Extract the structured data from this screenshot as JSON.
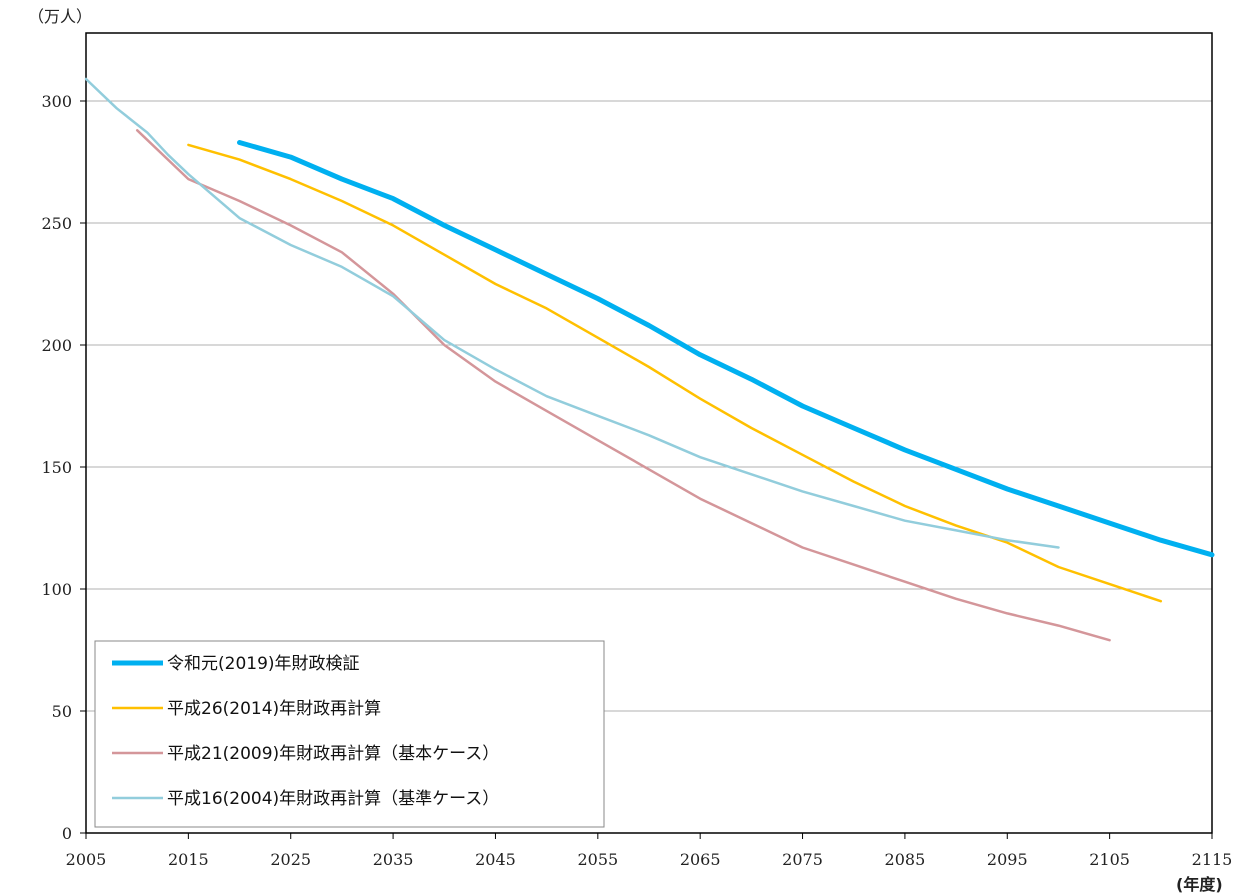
{
  "chart_data": {
    "type": "line",
    "ylabel": "（万人）",
    "xlabel": "(年度)",
    "xlim": [
      2005,
      2115
    ],
    "ylim": [
      0,
      300
    ],
    "yticks": [
      0,
      50,
      100,
      150,
      200,
      250,
      300
    ],
    "xticks": [
      2005,
      2015,
      2025,
      2035,
      2045,
      2055,
      2065,
      2075,
      2085,
      2095,
      2105,
      2115
    ],
    "grid": true,
    "legend_position": "bottom-left",
    "series": [
      {
        "name": "令和元(2019)年財政検証",
        "color": "#00b0f0",
        "width": "thick",
        "points": [
          [
            2020,
            283
          ],
          [
            2025,
            277
          ],
          [
            2030,
            268
          ],
          [
            2035,
            260
          ],
          [
            2040,
            249
          ],
          [
            2045,
            239
          ],
          [
            2050,
            229
          ],
          [
            2055,
            219
          ],
          [
            2060,
            208
          ],
          [
            2065,
            196
          ],
          [
            2070,
            186
          ],
          [
            2075,
            175
          ],
          [
            2080,
            166
          ],
          [
            2085,
            157
          ],
          [
            2090,
            149
          ],
          [
            2095,
            141
          ],
          [
            2100,
            134
          ],
          [
            2105,
            127
          ],
          [
            2110,
            120
          ],
          [
            2115,
            114
          ]
        ]
      },
      {
        "name": "平成26(2014)年財政再計算",
        "color": "#ffc000",
        "width": "normal",
        "points": [
          [
            2015,
            282
          ],
          [
            2020,
            276
          ],
          [
            2025,
            268
          ],
          [
            2030,
            259
          ],
          [
            2035,
            249
          ],
          [
            2040,
            237
          ],
          [
            2045,
            225
          ],
          [
            2050,
            215
          ],
          [
            2055,
            203
          ],
          [
            2060,
            191
          ],
          [
            2065,
            178
          ],
          [
            2070,
            166
          ],
          [
            2075,
            155
          ],
          [
            2080,
            144
          ],
          [
            2085,
            134
          ],
          [
            2090,
            126
          ],
          [
            2095,
            119
          ],
          [
            2100,
            109
          ],
          [
            2105,
            102
          ],
          [
            2110,
            95
          ]
        ]
      },
      {
        "name": "平成21(2009)年財政再計算（基本ケース）",
        "color": "#d4969a",
        "width": "normal",
        "points": [
          [
            2010,
            288
          ],
          [
            2015,
            268
          ],
          [
            2020,
            259
          ],
          [
            2025,
            249
          ],
          [
            2030,
            238
          ],
          [
            2035,
            221
          ],
          [
            2040,
            200
          ],
          [
            2045,
            185
          ],
          [
            2050,
            173
          ],
          [
            2055,
            161
          ],
          [
            2060,
            149
          ],
          [
            2065,
            137
          ],
          [
            2070,
            127
          ],
          [
            2075,
            117
          ],
          [
            2080,
            110
          ],
          [
            2085,
            103
          ],
          [
            2090,
            96
          ],
          [
            2095,
            90
          ],
          [
            2100,
            85
          ],
          [
            2105,
            79
          ]
        ]
      },
      {
        "name": "平成16(2004)年財政再計算（基準ケース）",
        "color": "#92cddc",
        "width": "normal",
        "points": [
          [
            2005,
            309
          ],
          [
            2008,
            297
          ],
          [
            2011,
            287
          ],
          [
            2013,
            278
          ],
          [
            2015,
            270
          ],
          [
            2020,
            252
          ],
          [
            2025,
            241
          ],
          [
            2030,
            232
          ],
          [
            2035,
            220
          ],
          [
            2040,
            202
          ],
          [
            2045,
            190
          ],
          [
            2050,
            179
          ],
          [
            2055,
            171
          ],
          [
            2060,
            163
          ],
          [
            2065,
            154
          ],
          [
            2070,
            147
          ],
          [
            2075,
            140
          ],
          [
            2080,
            134
          ],
          [
            2085,
            128
          ],
          [
            2090,
            124
          ],
          [
            2095,
            120
          ],
          [
            2100,
            117
          ]
        ]
      }
    ]
  }
}
